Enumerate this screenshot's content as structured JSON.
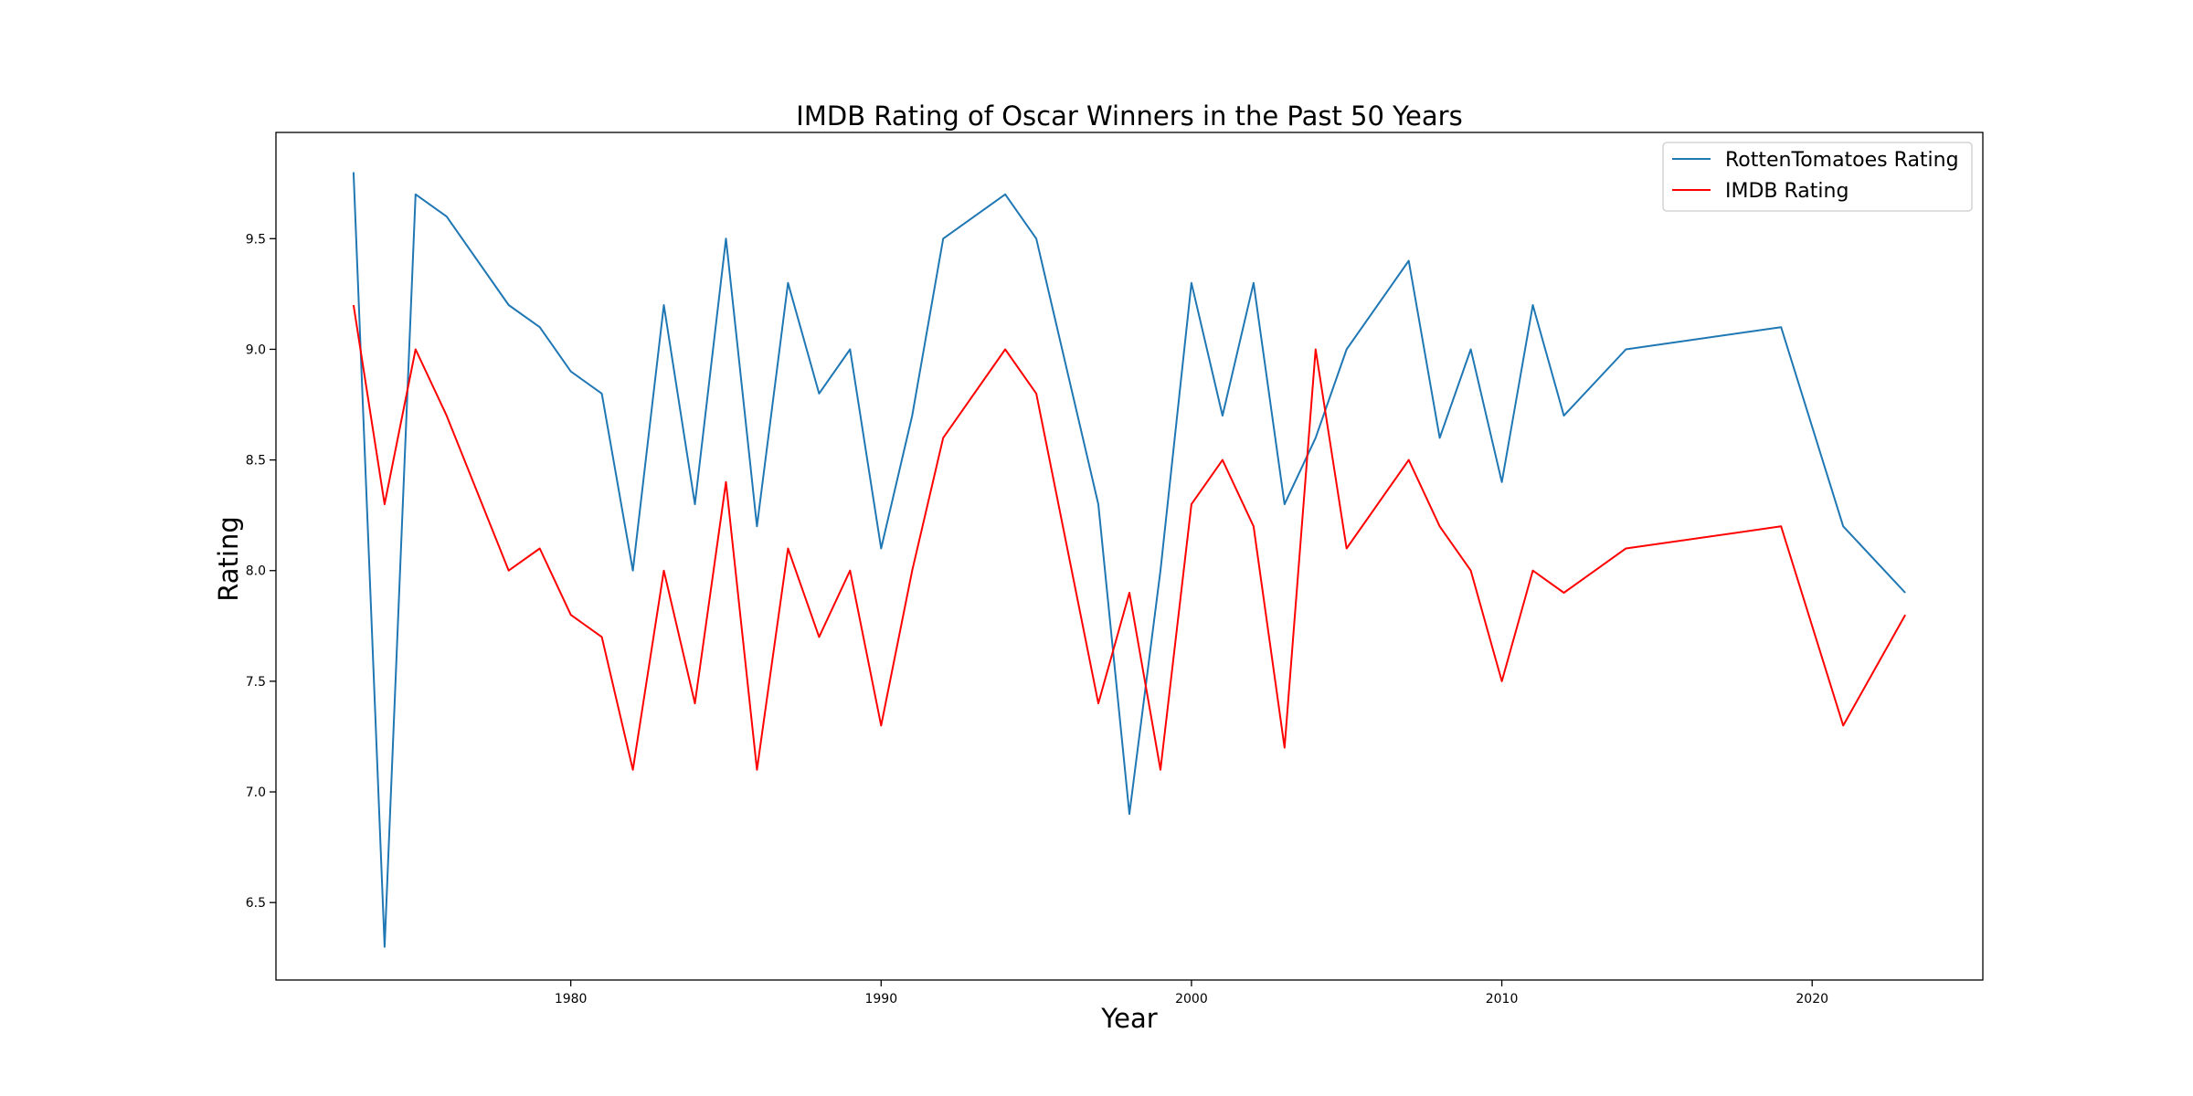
{
  "chart_data": {
    "type": "line",
    "title": "IMDB Rating of Oscar Winners in the Past 50 Years",
    "xlabel": "Year",
    "ylabel": "Rating",
    "xlim": [
      1970.5,
      2025.5
    ],
    "ylim": [
      6.15,
      9.98
    ],
    "xticks": [
      1980,
      1990,
      2000,
      2010,
      2020
    ],
    "yticks": [
      6.5,
      7.0,
      7.5,
      8.0,
      8.5,
      9.0,
      9.5
    ],
    "grid": false,
    "legend_position": "top-right",
    "x": [
      1973,
      1974,
      1975,
      1976,
      1978,
      1979,
      1980,
      1981,
      1982,
      1983,
      1984,
      1985,
      1986,
      1987,
      1988,
      1989,
      1990,
      1991,
      1992,
      1994,
      1995,
      1997,
      1998,
      1999,
      2000,
      2001,
      2002,
      2003,
      2004,
      2005,
      2007,
      2008,
      2009,
      2010,
      2011,
      2012,
      2014,
      2019,
      2021,
      2023
    ],
    "series": [
      {
        "name": "RottenTomatoes Rating",
        "color": "#1f77b4",
        "values": [
          9.8,
          6.3,
          9.7,
          9.6,
          9.2,
          9.1,
          8.9,
          8.8,
          8.0,
          9.2,
          8.3,
          9.5,
          8.2,
          9.3,
          8.8,
          9.0,
          8.1,
          8.7,
          9.5,
          9.7,
          9.5,
          8.3,
          6.9,
          8.0,
          9.3,
          8.7,
          9.3,
          8.3,
          8.6,
          9.0,
          9.4,
          8.6,
          9.0,
          8.4,
          9.2,
          8.7,
          9.0,
          9.1,
          8.2,
          7.9
        ]
      },
      {
        "name": "IMDB Rating",
        "color": "#ff0000",
        "values": [
          9.2,
          8.3,
          9.0,
          8.7,
          8.0,
          8.1,
          7.8,
          7.7,
          7.1,
          8.0,
          7.4,
          8.4,
          7.1,
          8.1,
          7.7,
          8.0,
          7.3,
          8.0,
          8.6,
          9.0,
          8.8,
          7.4,
          7.9,
          7.1,
          8.3,
          8.5,
          8.2,
          7.2,
          9.0,
          8.1,
          8.5,
          8.2,
          8.0,
          7.5,
          8.0,
          7.9,
          8.1,
          8.2,
          7.3,
          7.8
        ]
      }
    ]
  }
}
